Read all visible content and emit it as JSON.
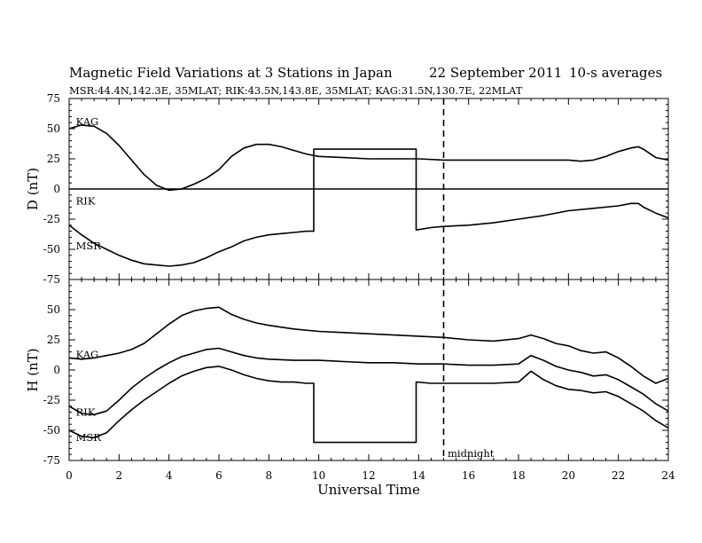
{
  "chart_data": [
    {
      "type": "line",
      "panel": "D",
      "title": "Magnetic Field Variations at 3 Stations in Japan",
      "date": "22 September 2011",
      "averaging": "10-s averages",
      "subtitle": "MSR:44.4N,142.3E, 35MLAT;  RIK:43.5N,143.8E, 35MLAT;  KAG:31.5N,130.7E, 22MLAT",
      "ylabel": "D (nT)",
      "xlim": [
        0,
        24
      ],
      "ylim": [
        -75,
        75
      ],
      "yticks": [
        "75",
        "50",
        "25",
        "0",
        "-25",
        "-50",
        "-75"
      ],
      "grid": false,
      "series": [
        {
          "name": "KAG",
          "x": [
            0,
            0.5,
            1,
            1.5,
            2,
            2.5,
            3,
            3.5,
            4,
            4.5,
            5,
            5.5,
            6,
            6.5,
            7,
            7.5,
            8,
            8.5,
            9,
            9.5,
            10,
            11,
            12,
            13,
            14,
            15,
            16,
            17,
            18,
            19,
            20,
            20.5,
            21,
            21.5,
            22,
            22.5,
            22.8,
            23,
            23.5,
            24
          ],
          "y": [
            50,
            53,
            52,
            46,
            36,
            24,
            12,
            3,
            -1,
            0,
            4,
            9,
            16,
            27,
            34,
            37,
            37,
            35,
            32,
            29,
            27,
            26,
            25,
            25,
            25,
            24,
            24,
            24,
            24,
            24,
            24,
            23,
            24,
            27,
            31,
            34,
            35,
            33,
            26,
            24
          ]
        },
        {
          "name": "RIK",
          "x": [
            0,
            24
          ],
          "y": [
            0,
            0
          ]
        },
        {
          "name": "MSR",
          "x": [
            0,
            0.5,
            1,
            1.5,
            2,
            2.5,
            3,
            3.5,
            4,
            4.5,
            5,
            5.5,
            6,
            6.5,
            7,
            7.5,
            8,
            8.5,
            9,
            9.5,
            9.8,
            9.8,
            13.9,
            13.9,
            14.5,
            15,
            16,
            17,
            18,
            19,
            20,
            21,
            22,
            22.5,
            22.8,
            23,
            23.5,
            24
          ],
          "y": [
            -30,
            -38,
            -45,
            -50,
            -55,
            -59,
            -62,
            -63,
            -64,
            -63,
            -61,
            -57,
            -52,
            -48,
            -43,
            -40,
            -38,
            -37,
            -36,
            -35,
            -35,
            33,
            33,
            -34,
            -32,
            -31,
            -30,
            -28,
            -25,
            -22,
            -18,
            -16,
            -14,
            -12,
            -12,
            -15,
            -20,
            -24
          ]
        }
      ],
      "labels": [
        {
          "text": "KAG",
          "x": 0.2,
          "y": 56
        },
        {
          "text": "RIK",
          "x": 0.2,
          "y": -10
        },
        {
          "text": "MSR",
          "x": 0.2,
          "y": -47
        }
      ]
    },
    {
      "type": "line",
      "panel": "H",
      "ylabel": "H (nT)",
      "xlabel": "Universal Time",
      "xlim": [
        0,
        24
      ],
      "ylim": [
        -75,
        75
      ],
      "xticks": [
        "0",
        "2",
        "4",
        "6",
        "8",
        "10",
        "12",
        "14",
        "16",
        "18",
        "20",
        "22",
        "24"
      ],
      "yticks": [
        "50",
        "25",
        "0",
        "-25",
        "-50",
        "-75"
      ],
      "grid": false,
      "annotation": {
        "text": "midnight",
        "x": 15
      },
      "series": [
        {
          "name": "KAG",
          "x": [
            0,
            0.5,
            1,
            1.5,
            2,
            2.5,
            3,
            3.5,
            4,
            4.5,
            5,
            5.5,
            6,
            6.5,
            7,
            7.5,
            8,
            9,
            10,
            11,
            12,
            13,
            14,
            15,
            16,
            17,
            18,
            18.5,
            19,
            19.5,
            20,
            20.5,
            21,
            21.5,
            22,
            22.5,
            23,
            23.5,
            24
          ],
          "y": [
            10,
            9,
            10,
            12,
            14,
            17,
            22,
            30,
            38,
            45,
            49,
            51,
            52,
            46,
            42,
            39,
            37,
            34,
            32,
            31,
            30,
            29,
            28,
            27,
            25,
            24,
            26,
            29,
            26,
            22,
            20,
            16,
            14,
            15,
            10,
            3,
            -5,
            -11,
            -7
          ]
        },
        {
          "name": "RIK",
          "x": [
            0,
            0.5,
            1,
            1.5,
            2,
            2.5,
            3,
            3.5,
            4,
            4.5,
            5,
            5.5,
            6,
            6.5,
            7,
            7.5,
            8,
            9,
            10,
            11,
            12,
            13,
            14,
            15,
            16,
            17,
            18,
            18.5,
            19,
            19.5,
            20,
            20.5,
            21,
            21.5,
            22,
            22.5,
            23,
            23.5,
            24
          ],
          "y": [
            -30,
            -36,
            -37,
            -34,
            -25,
            -15,
            -7,
            0,
            6,
            11,
            14,
            17,
            18,
            15,
            12,
            10,
            9,
            8,
            8,
            7,
            6,
            6,
            5,
            5,
            4,
            4,
            5,
            12,
            8,
            3,
            0,
            -2,
            -5,
            -4,
            -8,
            -14,
            -20,
            -28,
            -34
          ]
        },
        {
          "name": "MSR",
          "x": [
            0,
            0.5,
            1,
            1.5,
            2,
            2.5,
            3,
            3.5,
            4,
            4.5,
            5,
            5.5,
            6,
            6.5,
            7,
            7.5,
            8,
            8.5,
            9,
            9.5,
            9.8,
            9.8,
            13.9,
            13.9,
            14.5,
            15,
            16,
            17,
            18,
            18.5,
            19,
            19.5,
            20,
            20.5,
            21,
            21.5,
            22,
            22.5,
            23,
            23.5,
            24
          ],
          "y": [
            -50,
            -55,
            -56,
            -52,
            -42,
            -33,
            -25,
            -18,
            -11,
            -5,
            -1,
            2,
            3,
            0,
            -4,
            -7,
            -9,
            -10,
            -10,
            -11,
            -11,
            -60,
            -60,
            -10,
            -11,
            -11,
            -11,
            -11,
            -10,
            -1,
            -8,
            -13,
            -16,
            -17,
            -19,
            -18,
            -22,
            -28,
            -34,
            -42,
            -48
          ]
        }
      ],
      "labels": [
        {
          "text": "KAG",
          "x": 0.2,
          "y": 13
        },
        {
          "text": "RIK",
          "x": 0.2,
          "y": -35
        },
        {
          "text": "MSR",
          "x": 0.2,
          "y": -56
        }
      ]
    }
  ]
}
